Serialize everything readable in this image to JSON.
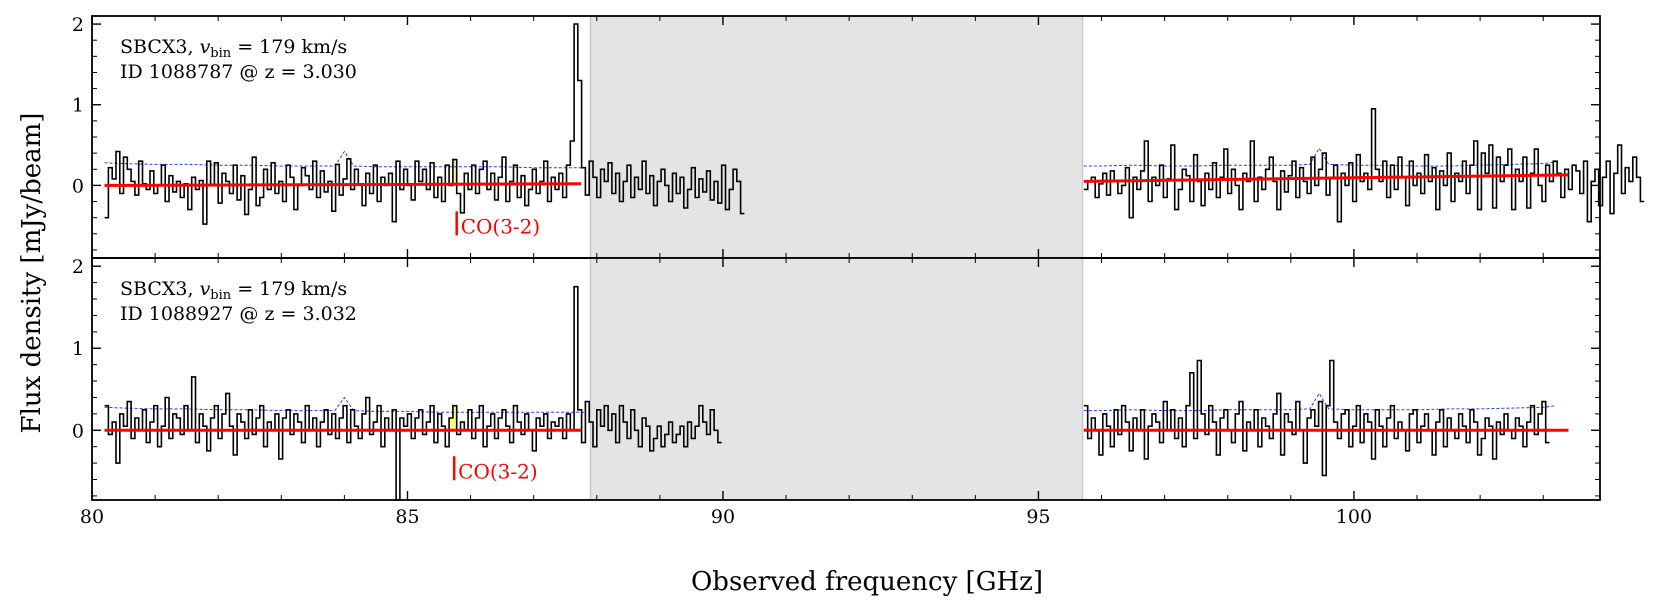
{
  "figure": {
    "ylabel": "Flux density [mJy/beam]",
    "xlabel": "Observed frequency [GHz]"
  },
  "chart_data": {
    "type": "step",
    "xlim": [
      80.0,
      103.9
    ],
    "xticks": [
      80,
      85,
      90,
      95,
      100
    ],
    "xtick_labels": [
      "80",
      "85",
      "90",
      "95",
      "100"
    ],
    "masked_range": [
      87.9,
      95.7
    ],
    "colors": {
      "spectrum": "#000000",
      "noise": "#1f3fff",
      "continuum": "#ff0000",
      "line_fill": "#ffff66",
      "mask": "#e4e4e4",
      "annotation": "#ff0000"
    },
    "panels": [
      {
        "name": "top",
        "ylim": [
          -0.9,
          2.1
        ],
        "yticks": [
          0,
          1,
          2
        ],
        "ytick_labels": [
          "0",
          "1",
          "2"
        ],
        "label_line1_prefix": "SBCX3, ",
        "label_vbin_symbol": "v",
        "label_vbin_sub": "bin",
        "label_vbin_value": " = 179 km/s",
        "label_line2": "ID 1088787 @ z = 3.030",
        "line_marker_freq": 85.78,
        "line_label": "CO(3-2)",
        "segments": [
          {
            "x_start": 80.2,
            "x_step": 0.06,
            "values": [
              -0.4,
              0.22,
              0.08,
              0.42,
              -0.1,
              0.35,
              0.2,
              0.05,
              -0.12,
              0.3,
              0.02,
              -0.05,
              0.18,
              -0.1,
              0.0,
              0.25,
              -0.2,
              0.12,
              -0.08,
              0.05,
              -0.15,
              0.02,
              -0.3,
              0.1,
              -0.05,
              0.06,
              -0.48,
              0.3,
              0.0,
              0.28,
              -0.22,
              0.15,
              0.05,
              -0.1,
              0.25,
              -0.18,
              0.12,
              -0.36,
              -0.05,
              0.35,
              -0.25,
              -0.15,
              0.2,
              -0.05,
              0.28,
              -0.1,
              0.05,
              -0.2,
              0.25,
              0.1,
              -0.3,
              0.0,
              0.22,
              0.12,
              -0.05,
              0.3,
              -0.15,
              0.18,
              -0.08,
              0.05,
              -0.32,
              0.26,
              -0.12,
              0.08,
              0.33,
              -0.05,
              0.2,
              0.02,
              -0.25,
              0.15,
              -0.1,
              0.25,
              -0.2,
              0.1,
              0.0,
              0.15,
              -0.45,
              0.3,
              -0.05,
              0.2,
              0.0,
              -0.18,
              0.3,
              0.05,
              0.2,
              -0.05,
              0.28,
              -0.15,
              0.1,
              -0.2,
              0.25,
              0.0,
              0.32,
              -0.1,
              -0.34,
              0.15,
              -0.05,
              0.25,
              -0.1,
              0.2,
              0.3,
              -0.05,
              0.15,
              -0.18,
              0.1,
              0.35,
              -0.2,
              0.05,
              0.25,
              -0.15,
              0.12,
              -0.25,
              -0.05,
              0.2,
              -0.1,
              0.05,
              0.3,
              -0.2,
              0.1,
              -0.05,
              0.15,
              -0.15,
              0.25,
              0.55,
              2.0,
              1.3,
              0.22,
              -0.12,
              0.3,
              0.1,
              -0.15,
              0.2,
              0.05,
              0.28,
              -0.1,
              0.15,
              -0.2,
              0.05,
              0.25,
              -0.15,
              0.1,
              -0.05,
              0.3,
              -0.1,
              0.12,
              -0.25,
              0.05,
              0.2,
              0.0,
              -0.2,
              0.15,
              -0.1,
              0.1,
              -0.28,
              -0.05,
              0.22,
              -0.15,
              0.08,
              -0.08,
              0.18,
              -0.18,
              0.05,
              -0.22,
              0.25,
              -0.3,
              -0.05,
              0.2,
              0.05,
              -0.35
            ]
          },
          {
            "x_start": 95.72,
            "x_step": 0.06,
            "values": [
              -0.05,
              0.05,
              0.1,
              -0.15,
              0.02,
              0.15,
              -0.12,
              0.18,
              0.05,
              -0.1,
              0.0,
              0.22,
              -0.4,
              0.1,
              -0.05,
              0.18,
              0.55,
              -0.2,
              0.1,
              0.0,
              0.25,
              -0.15,
              0.08,
              0.5,
              -0.3,
              -0.05,
              0.2,
              0.12,
              -0.2,
              0.38,
              0.05,
              -0.25,
              0.15,
              -0.05,
              0.28,
              -0.15,
              0.1,
              0.45,
              -0.1,
              0.2,
              0.0,
              -0.3,
              0.15,
              0.05,
              0.55,
              -0.2,
              0.1,
              -0.05,
              0.2,
              0.35,
              0.05,
              -0.3,
              0.18,
              -0.08,
              0.12,
              0.3,
              -0.15,
              0.22,
              0.05,
              -0.1,
              0.35,
              0.0,
              0.2,
              0.4,
              -0.12,
              0.1,
              0.25,
              -0.45,
              0.15,
              0.0,
              0.28,
              -0.2,
              0.38,
              0.05,
              0.15,
              -0.05,
              0.95,
              0.2,
              0.05,
              0.3,
              -0.15,
              0.25,
              -0.05,
              0.35,
              0.1,
              -0.25,
              0.3,
              0.0,
              0.15,
              -0.1,
              0.38,
              0.05,
              0.22,
              -0.3,
              0.18,
              0.0,
              0.4,
              -0.2,
              0.15,
              0.05,
              0.3,
              -0.1,
              0.25,
              0.55,
              -0.3,
              0.4,
              0.15,
              0.5,
              -0.28,
              0.35,
              0.05,
              0.25,
              0.45,
              -0.3,
              0.2,
              0.05,
              0.35,
              -0.28,
              0.15,
              0.45,
              0.0,
              -0.2,
              0.25,
              0.05,
              0.3,
              0.15,
              -0.15,
              0.2,
              -0.05,
              0.25,
              0.18,
              -0.1,
              0.3,
              -0.45,
              0.05,
              0.2,
              -0.25,
              0.1,
              0.3,
              -0.35,
              0.15,
              0.5,
              -0.1,
              0.22,
              0.05,
              0.35,
              0.1,
              -0.2
            ]
          }
        ],
        "noise_segments": [
          {
            "x": [
              80.2,
              80.5,
              81.0,
              81.5,
              82.0,
              82.5,
              83.0,
              83.5,
              83.85,
              84.0,
              84.15,
              84.5,
              85.0,
              85.5,
              86.0,
              86.5,
              87.0,
              87.5,
              87.8
            ],
            "y": [
              0.28,
              0.27,
              0.26,
              0.26,
              0.25,
              0.25,
              0.24,
              0.24,
              0.24,
              0.42,
              0.24,
              0.23,
              0.23,
              0.23,
              0.23,
              0.23,
              0.22,
              0.22,
              0.22
            ]
          },
          {
            "x": [
              95.72,
              96.0,
              96.5,
              97.0,
              97.5,
              98.0,
              98.5,
              99.0,
              99.3,
              99.45,
              99.6,
              100.0,
              100.5,
              101.0,
              101.5,
              102.0,
              102.5,
              103.0,
              103.2
            ],
            "y": [
              0.24,
              0.24,
              0.25,
              0.24,
              0.24,
              0.25,
              0.25,
              0.25,
              0.26,
              0.46,
              0.26,
              0.25,
              0.25,
              0.24,
              0.24,
              0.25,
              0.26,
              0.27,
              0.29
            ]
          }
        ],
        "continuum_segments": [
          {
            "x": [
              80.2,
              87.75
            ],
            "y": [
              0.0,
              0.02
            ]
          },
          {
            "x": [
              95.72,
              103.4
            ],
            "y": [
              0.05,
              0.13
            ]
          }
        ],
        "highlight": {
          "x_start": 85.7,
          "x_end": 85.82
        }
      },
      {
        "name": "bottom",
        "ylim": [
          -0.85,
          2.1
        ],
        "yticks": [
          0,
          1,
          2
        ],
        "ytick_labels": [
          "0",
          "1",
          "2"
        ],
        "label_line1_prefix": "SBCX3, ",
        "label_vbin_symbol": "v",
        "label_vbin_sub": "bin",
        "label_vbin_value": " = 179 km/s",
        "label_line2": "ID 1088927 @ z = 3.032",
        "line_marker_freq": 85.74,
        "line_label": "CO(3-2)",
        "segments": [
          {
            "x_start": 80.2,
            "x_step": 0.06,
            "values": [
              0.3,
              -0.05,
              0.1,
              -0.4,
              0.2,
              0.05,
              0.35,
              -0.1,
              0.15,
              0.0,
              0.25,
              -0.15,
              0.1,
              0.3,
              -0.2,
              0.05,
              0.4,
              -0.1,
              0.2,
              0.15,
              -0.05,
              0.3,
              0.0,
              0.65,
              -0.15,
              0.2,
              0.05,
              -0.25,
              0.15,
              0.3,
              -0.1,
              0.2,
              0.45,
              0.05,
              -0.3,
              0.2,
              0.1,
              -0.1,
              0.25,
              -0.05,
              0.15,
              0.3,
              -0.2,
              0.1,
              0.0,
              0.2,
              -0.35,
              0.15,
              0.25,
              -0.05,
              0.2,
              0.1,
              -0.15,
              0.3,
              0.0,
              0.15,
              -0.2,
              0.1,
              0.25,
              -0.05,
              0.2,
              -0.1,
              0.15,
              0.3,
              -0.15,
              0.25,
              0.05,
              -0.1,
              0.2,
              0.4,
              -0.05,
              0.1,
              0.3,
              -0.2,
              0.15,
              0.0,
              0.25,
              -0.85,
              0.15,
              0.05,
              0.2,
              -0.1,
              0.15,
              0.25,
              -0.05,
              0.1,
              0.3,
              -0.15,
              0.2,
              0.05,
              -0.2,
              0.15,
              0.3,
              -0.05,
              0.1,
              0.0,
              0.25,
              -0.1,
              0.15,
              0.3,
              -0.2,
              0.05,
              0.2,
              -0.1,
              0.15,
              0.25,
              0.05,
              -0.15,
              0.3,
              0.1,
              -0.05,
              0.2,
              0.0,
              -0.25,
              0.15,
              0.05,
              0.2,
              -0.1,
              0.1,
              0.05,
              0.15,
              -0.1,
              0.2,
              0.0,
              1.75,
              0.25,
              -0.15,
              0.35,
              0.1,
              -0.2,
              0.25,
              0.05,
              0.3,
              0.0,
              0.2,
              -0.15,
              0.3,
              0.1,
              -0.1,
              0.25,
              0.0,
              -0.2,
              0.15,
              0.05,
              -0.25,
              -0.1,
              0.05,
              -0.2,
              -0.05,
              0.1,
              -0.15,
              -0.05,
              0.05,
              -0.2,
              0.1,
              -0.1,
              0.05,
              0.3,
              0.1,
              -0.05,
              0.25,
              0.0,
              -0.15
            ]
          },
          {
            "x_start": 95.72,
            "x_step": 0.06,
            "values": [
              0.3,
              -0.1,
              0.15,
              0.0,
              -0.3,
              0.2,
              0.05,
              -0.2,
              0.25,
              -0.05,
              0.3,
              0.1,
              -0.25,
              0.15,
              0.0,
              0.25,
              -0.35,
              0.05,
              0.2,
              0.1,
              -0.15,
              0.35,
              0.0,
              0.25,
              -0.1,
              0.15,
              -0.2,
              0.3,
              0.7,
              -0.1,
              0.85,
              0.2,
              -0.05,
              0.3,
              0.1,
              -0.3,
              0.15,
              0.25,
              0.0,
              -0.15,
              0.2,
              0.35,
              -0.25,
              0.1,
              0.0,
              0.25,
              -0.2,
              0.15,
              0.05,
              -0.1,
              0.2,
              0.45,
              -0.3,
              0.2,
              0.1,
              -0.05,
              0.35,
              0.0,
              -0.4,
              0.15,
              0.25,
              0.05,
              0.35,
              -0.55,
              0.3,
              0.85,
              0.1,
              -0.1,
              0.2,
              0.25,
              -0.2,
              0.05,
              0.3,
              -0.15,
              0.2,
              0.1,
              -0.35,
              0.25,
              0.05,
              -0.2,
              0.15,
              0.3,
              -0.1,
              0.1,
              0.0,
              -0.25,
              0.2,
              0.25,
              -0.15,
              0.05,
              0.2,
              0.0,
              -0.3,
              0.1,
              0.25,
              -0.2,
              0.15,
              0.0,
              -0.1,
              0.2,
              0.05,
              -0.15,
              0.25,
              0.1,
              -0.3,
              -0.1,
              0.15,
              0.05,
              -0.35,
              0.1,
              -0.05,
              0.2,
              0.0,
              -0.1,
              0.15,
              0.05,
              -0.2,
              0.1,
              0.3,
              -0.05,
              0.2,
              0.35,
              -0.15
            ]
          }
        ],
        "noise_segments": [
          {
            "x": [
              80.2,
              80.5,
              81.0,
              81.5,
              82.0,
              82.5,
              83.0,
              83.5,
              83.85,
              84.0,
              84.15,
              84.5,
              85.0,
              85.5,
              86.0,
              86.5,
              87.0,
              87.5,
              87.8
            ],
            "y": [
              0.28,
              0.27,
              0.26,
              0.26,
              0.25,
              0.25,
              0.24,
              0.24,
              0.24,
              0.4,
              0.24,
              0.23,
              0.23,
              0.22,
              0.22,
              0.22,
              0.22,
              0.22,
              0.22
            ]
          },
          {
            "x": [
              95.72,
              96.0,
              96.5,
              97.0,
              97.5,
              98.0,
              98.5,
              99.0,
              99.3,
              99.45,
              99.6,
              100.0,
              100.5,
              101.0,
              101.5,
              102.0,
              102.5,
              103.0,
              103.2
            ],
            "y": [
              0.24,
              0.24,
              0.25,
              0.24,
              0.24,
              0.25,
              0.25,
              0.25,
              0.26,
              0.45,
              0.26,
              0.25,
              0.25,
              0.25,
              0.26,
              0.26,
              0.27,
              0.28,
              0.3
            ]
          }
        ],
        "continuum_segments": [
          {
            "x": [
              80.2,
              87.75
            ],
            "y": [
              0.0,
              0.0
            ]
          },
          {
            "x": [
              95.72,
              103.4
            ],
            "y": [
              0.0,
              0.0
            ]
          }
        ],
        "highlight": {
          "x_start": 85.68,
          "x_end": 85.8
        }
      }
    ]
  }
}
